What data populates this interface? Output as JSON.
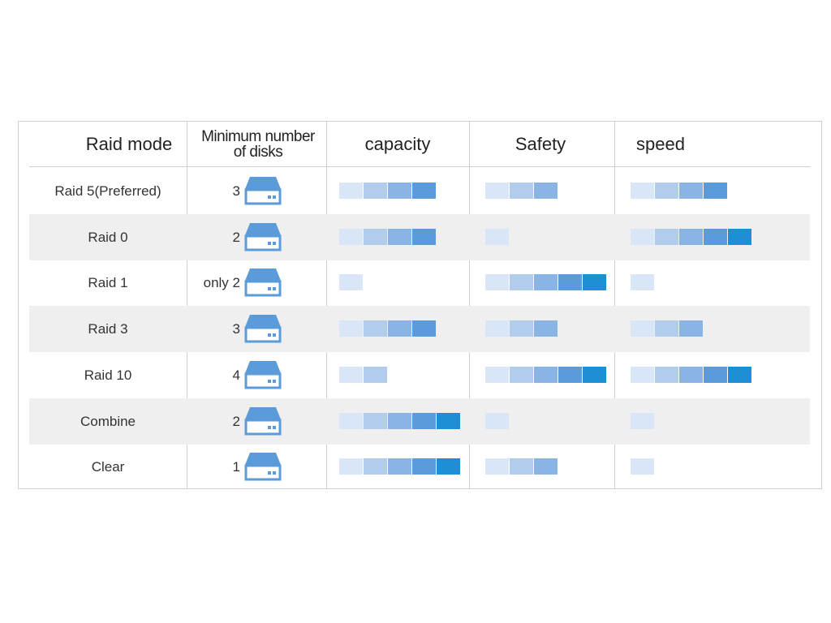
{
  "table": {
    "headers": {
      "mode": "Raid  mode",
      "min_disks_line1": "Minimum number",
      "min_disks_line2": "of disks",
      "capacity": "capacity",
      "safety": "Safety",
      "speed": "speed"
    },
    "rows": [
      {
        "mode": "Raid 5(Preferred)",
        "disks": "3",
        "capacity": 4,
        "safety": 3,
        "speed": 4
      },
      {
        "mode": "Raid 0",
        "disks": "2",
        "capacity": 4,
        "safety": 1,
        "speed": 5
      },
      {
        "mode": "Raid 1",
        "disks": "only 2",
        "capacity": 1,
        "safety": 5,
        "speed": 1
      },
      {
        "mode": "Raid 3",
        "disks": "3",
        "capacity": 4,
        "safety": 3,
        "speed": 3
      },
      {
        "mode": "Raid 10",
        "disks": "4",
        "capacity": 2,
        "safety": 5,
        "speed": 5
      },
      {
        "mode": "Combine",
        "disks": "2",
        "capacity": 5,
        "safety": 1,
        "speed": 1
      },
      {
        "mode": "Clear",
        "disks": "1",
        "capacity": 5,
        "safety": 3,
        "speed": 1
      }
    ],
    "rating_max": 5
  },
  "colors": {
    "border": "#cfcfcf",
    "row_shade": "#efefef",
    "disk_icon": "#5b9bd9",
    "rating_levels": [
      "#d9e6f7",
      "#b2cdeb",
      "#8ab4e3",
      "#5b9bd9",
      "#1e8fd3"
    ]
  },
  "icons": {
    "disk": "hard-disk-icon"
  }
}
